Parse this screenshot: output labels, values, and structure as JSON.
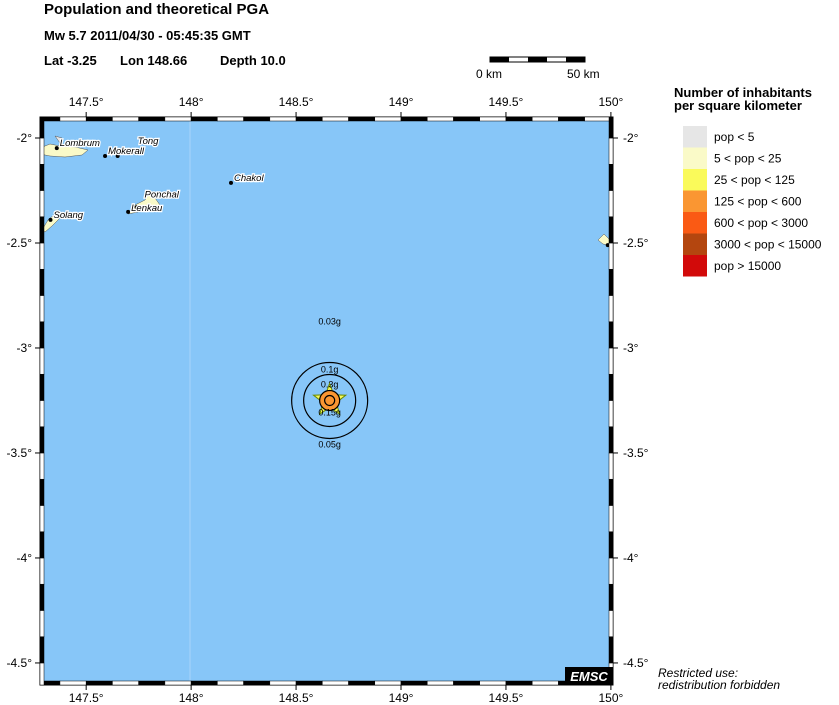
{
  "header": {
    "title": "Population and theoretical PGA",
    "event": "Mw 5.7  2011/04/30 - 05:45:35 GMT",
    "lat_label": "Lat -3.25",
    "lon_label": "Lon 148.66",
    "depth_label": "Depth  10.0"
  },
  "scale_bar": {
    "start": "0 km",
    "end": "50 km"
  },
  "map": {
    "lon_range": [
      147.28,
      150.01
    ],
    "lat_range": [
      -4.605,
      -1.9
    ],
    "ocean_color": "#87c6f8",
    "lon_ticks": [
      {
        "v": 147.5,
        "label": "147.5°"
      },
      {
        "v": 148,
        "label": "148°"
      },
      {
        "v": 148.5,
        "label": "148.5°"
      },
      {
        "v": 149,
        "label": "149°"
      },
      {
        "v": 149.5,
        "label": "149.5°"
      },
      {
        "v": 150,
        "label": "150°"
      }
    ],
    "lat_ticks": [
      {
        "v": -2,
        "label": "-2°"
      },
      {
        "v": -2.5,
        "label": "-2.5°"
      },
      {
        "v": -3,
        "label": "-3°"
      },
      {
        "v": -3.5,
        "label": "-3.5°"
      },
      {
        "v": -4,
        "label": "-4°"
      },
      {
        "v": -4.5,
        "label": "-4.5°"
      }
    ],
    "towns": [
      {
        "name": "Lombrum",
        "lon": 147.36,
        "lat": -2.048
      },
      {
        "name": "Mokerall",
        "lon": 147.59,
        "lat": -2.086
      },
      {
        "name": "Tong",
        "lon": 147.65,
        "lat": -2.086
      },
      {
        "name": "Chakol",
        "lon": 148.19,
        "lat": -2.214
      },
      {
        "name": "Ponchal",
        "lon": 147.74,
        "lat": -2.33
      },
      {
        "name": "Lenkau",
        "lon": 147.7,
        "lat": -2.352
      },
      {
        "name": "Solang",
        "lon": 147.33,
        "lat": -2.39
      },
      {
        "name": "",
        "lon": 149.985,
        "lat": -2.51
      }
    ],
    "epicenter": {
      "lon": 148.66,
      "lat": -3.25
    },
    "pga_labels": [
      {
        "text": "0.03g",
        "color": "#000000"
      },
      {
        "text": "0.1g",
        "color": "#000000"
      },
      {
        "text": "0.3g",
        "color": "#000000"
      },
      {
        "text": "0.15g",
        "color": "#d0206a"
      },
      {
        "text": "0.05g",
        "color": "#000000"
      }
    ],
    "logo": "EMSC"
  },
  "legend": {
    "title_line1": "Number of inhabitants",
    "title_line2": "per square kilometer",
    "items": [
      {
        "label": "pop < 5",
        "color": "#e6e6e6"
      },
      {
        "label": "5 < pop < 25",
        "color": "#fafac8"
      },
      {
        "label": "25 < pop < 125",
        "color": "#fafa5a"
      },
      {
        "label": "125 < pop < 600",
        "color": "#fa9632"
      },
      {
        "label": "600 < pop < 3000",
        "color": "#fa5a14"
      },
      {
        "label": "3000 < pop < 15000",
        "color": "#b4460f"
      },
      {
        "label": "pop > 15000",
        "color": "#d20a0a"
      }
    ]
  },
  "footer": {
    "line1": "Restricted use:",
    "line2": "redistribution forbidden"
  }
}
